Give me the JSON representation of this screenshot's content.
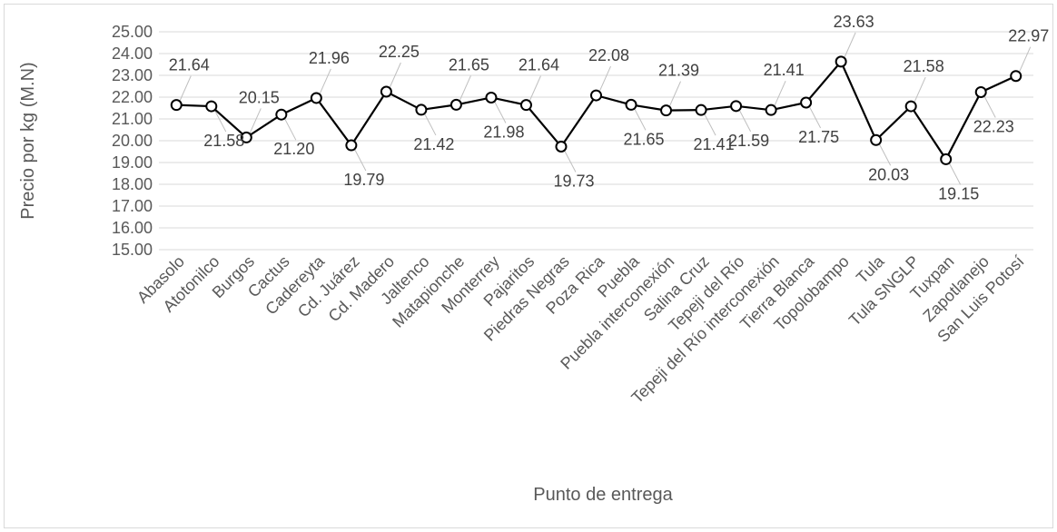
{
  "chart_data": {
    "type": "line",
    "title": "",
    "xlabel": "Punto de entrega",
    "ylabel": "Precio por kg (M.N)",
    "ylim": [
      15,
      25
    ],
    "ytick_step": 1,
    "grid": true,
    "legend": "none",
    "line_color": "#000000",
    "gridline_color": "#d9d9d9",
    "categories": [
      "Abasolo",
      "Atotonilco",
      "Burgos",
      "Cactus",
      "Cadereyta",
      "Cd. Juárez",
      "Cd. Madero",
      "Jaltenco",
      "Matapionche",
      "Monterrey",
      "Pajaritos",
      "Piedras Negras",
      "Poza Rica",
      "Puebla",
      "Puebla interconexión",
      "Salina Cruz",
      "Tepeji del Río",
      "Tepeji del Río interconexión",
      "Tierra Blanca",
      "Topolobampo",
      "Tula",
      "Tula SNGLP",
      "Tuxpan",
      "Zapotlanejo",
      "San Luis Potosí"
    ],
    "values": [
      21.64,
      21.58,
      20.15,
      21.2,
      21.96,
      19.79,
      22.25,
      21.42,
      21.65,
      21.98,
      21.64,
      19.73,
      22.08,
      21.65,
      21.39,
      21.41,
      21.59,
      21.41,
      21.75,
      23.63,
      20.03,
      21.58,
      19.15,
      22.23,
      22.97
    ],
    "data_labels": [
      "21.64",
      "21.58",
      "20.15",
      "21.20",
      "21.96",
      "19.79",
      "22.25",
      "21.42",
      "21.65",
      "21.98",
      "21.64",
      "19.73",
      "22.08",
      "21.65",
      "21.39",
      "21.41",
      "21.59",
      "21.41",
      "21.75",
      "23.63",
      "20.03",
      "21.58",
      "19.15",
      "22.23",
      "22.97"
    ]
  }
}
